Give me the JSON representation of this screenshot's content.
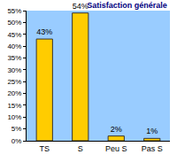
{
  "chart_data": {
    "type": "bar",
    "title": "Satisfaction générale",
    "categories": [
      "TS",
      "S",
      "Peu S",
      "Pas S"
    ],
    "values": [
      43,
      54,
      2,
      1
    ],
    "value_labels": [
      "43%",
      "54%",
      "2%",
      "1%"
    ],
    "data_labels": true,
    "color": "#ffcc00",
    "ylim": [
      0,
      55
    ],
    "yticks": [
      {
        "value": 0,
        "label": "0%"
      },
      {
        "value": 5,
        "label": "5%"
      },
      {
        "value": 10,
        "label": "10%"
      },
      {
        "value": 15,
        "label": "15%"
      },
      {
        "value": 20,
        "label": "20%"
      },
      {
        "value": 25,
        "label": "25%"
      },
      {
        "value": 30,
        "label": "30%"
      },
      {
        "value": 35,
        "label": "35%"
      },
      {
        "value": 40,
        "label": "40%"
      },
      {
        "value": 45,
        "label": "45%"
      },
      {
        "value": 50,
        "label": "50%"
      },
      {
        "value": 55,
        "label": "55%"
      }
    ],
    "grid": false
  }
}
